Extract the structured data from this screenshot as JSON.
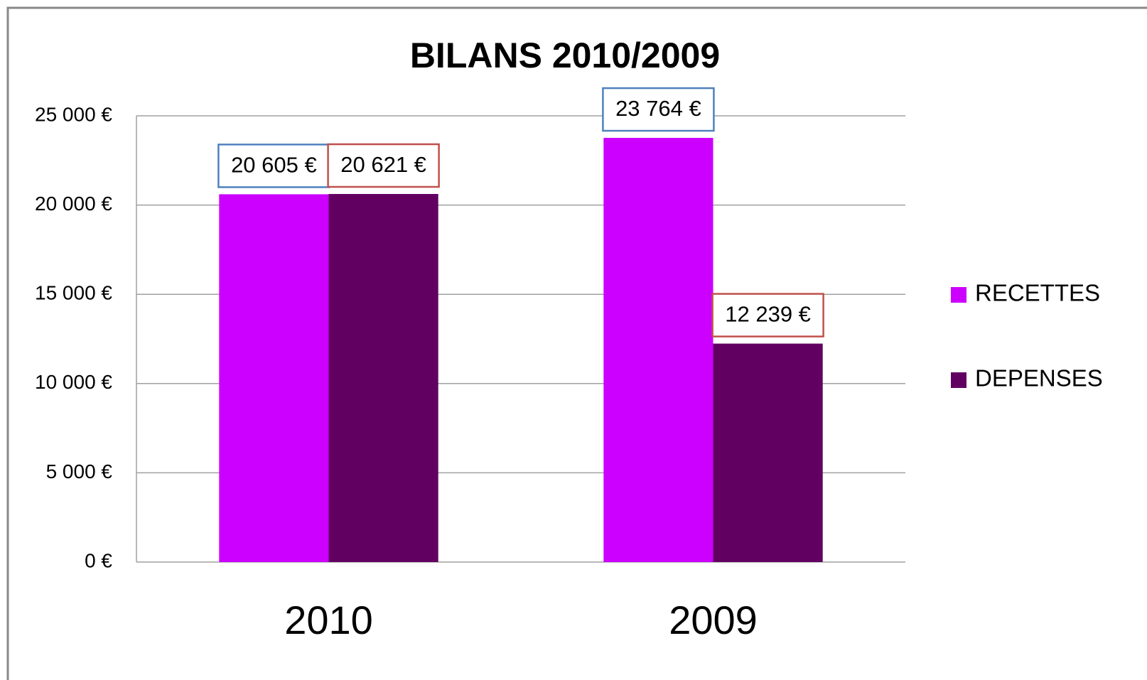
{
  "chart_data": {
    "type": "bar",
    "title": "BILANS 2010/2009",
    "categories": [
      "2010",
      "2009"
    ],
    "series": [
      {
        "name": "RECETTES",
        "color": "#cc00ff",
        "label_border": "#4f81bd",
        "values": [
          20605,
          23764
        ],
        "value_labels": [
          "20 605 €",
          "23 764 €"
        ]
      },
      {
        "name": "DEPENSES",
        "color": "#620062",
        "label_border": "#c0504d",
        "values": [
          20621,
          12239
        ],
        "value_labels": [
          "20 621 €",
          "12 239 €"
        ]
      }
    ],
    "ylim": [
      0,
      25000
    ],
    "yticks": [
      {
        "value": 0,
        "label": "0 €"
      },
      {
        "value": 5000,
        "label": "5 000 €"
      },
      {
        "value": 10000,
        "label": "10 000 €"
      },
      {
        "value": 15000,
        "label": "15 000 €"
      },
      {
        "value": 20000,
        "label": "20 000 €"
      },
      {
        "value": 25000,
        "label": "25 000 €"
      }
    ],
    "grid": true,
    "legend": "right"
  }
}
